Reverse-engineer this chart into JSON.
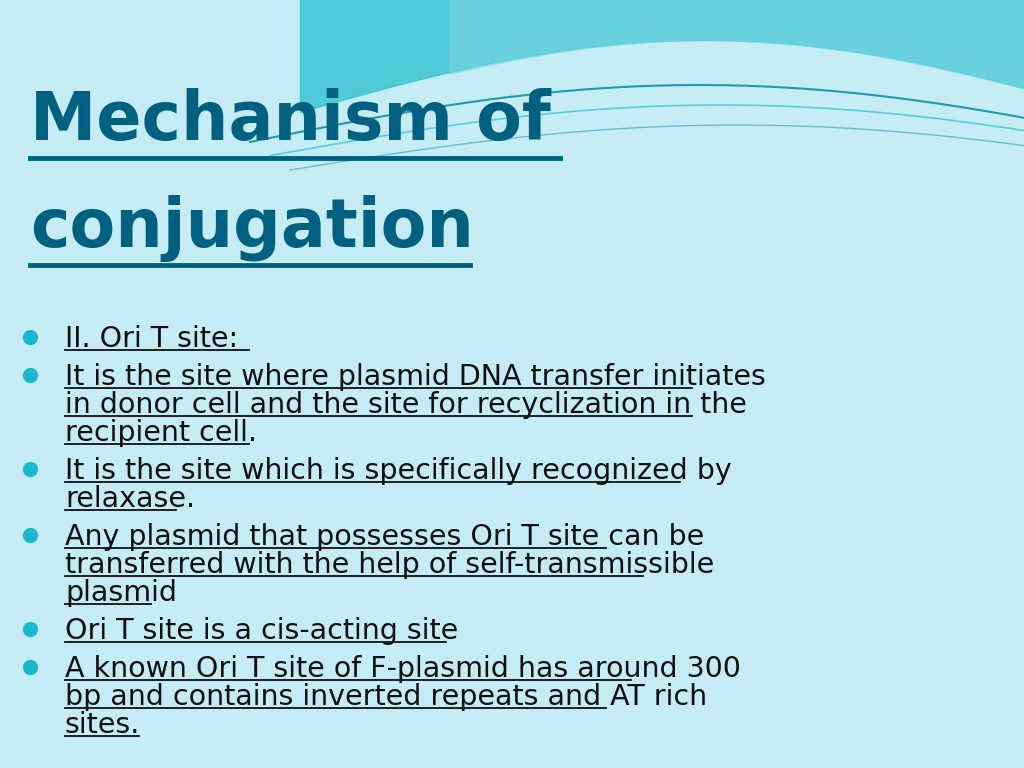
{
  "title_line1": "Mechanism of",
  "title_line2": "conjugation",
  "title_color": "#006080",
  "title_fontsize": 48,
  "bg_color": "#c5ecf4",
  "bullet_color": "#1ab8cc",
  "text_color": "#111111",
  "bullet_fontsize": 20.5,
  "bullets": [
    "II. Ori T site:",
    "It is the site where plasmid DNA transfer initiates\nin donor cell and the site for recyclization in the\nrecipient cell.",
    "It is the site which is specifically recognized by\nrelaxase.",
    "Any plasmid that possesses Ori T site can be\ntransferred with the help of self-transmissible\nplasmid",
    "Ori T site is a cis-acting site",
    "A known Ori T site of F-plasmid has around 300\nbp and contains inverted repeats and AT rich\nsites."
  ],
  "wave1_color": "#29bfce",
  "wave2_color": "#7dd8e0",
  "wave_line_color": "#1090a8",
  "wave_line_color2": "#29bfce"
}
